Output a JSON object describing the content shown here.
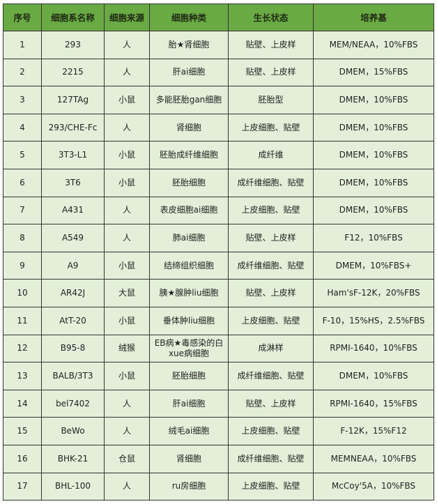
{
  "headers": [
    "序号",
    "细胞系名称",
    "细胞来源",
    "细胞种类",
    "生长状态",
    "培养基"
  ],
  "rows": [
    [
      "1",
      "293",
      "人",
      "胎★肾细胞",
      "贴壁、上皮样",
      "MEM/NEAA，10%FBS"
    ],
    [
      "2",
      "2215",
      "人",
      "肝ai细胞",
      "贴壁、上皮样",
      "DMEM，15%FBS"
    ],
    [
      "3",
      "127TAg",
      "小鼠",
      "多能胚胎gan细胞",
      "胚胎型",
      "DMEM，10%FBS"
    ],
    [
      "4",
      "293/CHE-Fc",
      "人",
      "肾细胞",
      "上皮细胞、贴壁",
      "DMEM，10%FBS"
    ],
    [
      "5",
      "3T3-L1",
      "小鼠",
      "胚胎成纤维细胞",
      "成纤维",
      "DMEM，10%FBS"
    ],
    [
      "6",
      "3T6",
      "小鼠",
      "胚胎细胞",
      "成纤维细胞、贴壁",
      "DMEM，10%FBS"
    ],
    [
      "7",
      "A431",
      "人",
      "表皮细胞ai细胞",
      "上皮细胞、贴壁",
      "DMEM，10%FBS"
    ],
    [
      "8",
      "A549",
      "人",
      "肺ai细胞",
      "贴壁、上皮样",
      "F12，10%FBS"
    ],
    [
      "9",
      "A9",
      "小鼠",
      "结缔组织细胞",
      "成纤维细胞、贴壁",
      "DMEM，10%FBS+"
    ],
    [
      "10",
      "AR42J",
      "大鼠",
      "胰★腺肿liu细胞",
      "贴壁、上皮样",
      "Ham'sF-12K，20%FBS"
    ],
    [
      "11",
      "AtT-20",
      "小鼠",
      "垂体肿liu细胞",
      "上皮细胞、贴壁",
      "F-10，15%HS，2.5%FBS"
    ],
    [
      "12",
      "B95-8",
      "绒猴",
      "EB病★毒感染的白xue病细胞",
      "成淋样",
      "RPMI-1640，10%FBS"
    ],
    [
      "13",
      "BALB/3T3",
      "小鼠",
      "胚胎细胞",
      "成纤维细胞、贴壁",
      "DMEM，10%FBS"
    ],
    [
      "14",
      "bel7402",
      "人",
      "肝ai细胞",
      "贴壁、上皮样",
      "RPMI-1640，15%FBS"
    ],
    [
      "15",
      "BeWo",
      "人",
      "绒毛ai细胞",
      "上皮细胞、贴壁",
      "F-12K，15%F12"
    ],
    [
      "16",
      "BHK-21",
      "仓鼠",
      "肾细胞",
      "成纤维细胞、贴壁",
      "MEMNEAA，10%FBS"
    ],
    [
      "17",
      "BHL-100",
      "人",
      "ru房细胞",
      "上皮细胞、贴壁",
      "McCoy'5A，10%FBS"
    ]
  ],
  "colors": {
    "header_bg": "#6aaa44",
    "cell_bg": "#e3efd9",
    "border": "#333333"
  }
}
